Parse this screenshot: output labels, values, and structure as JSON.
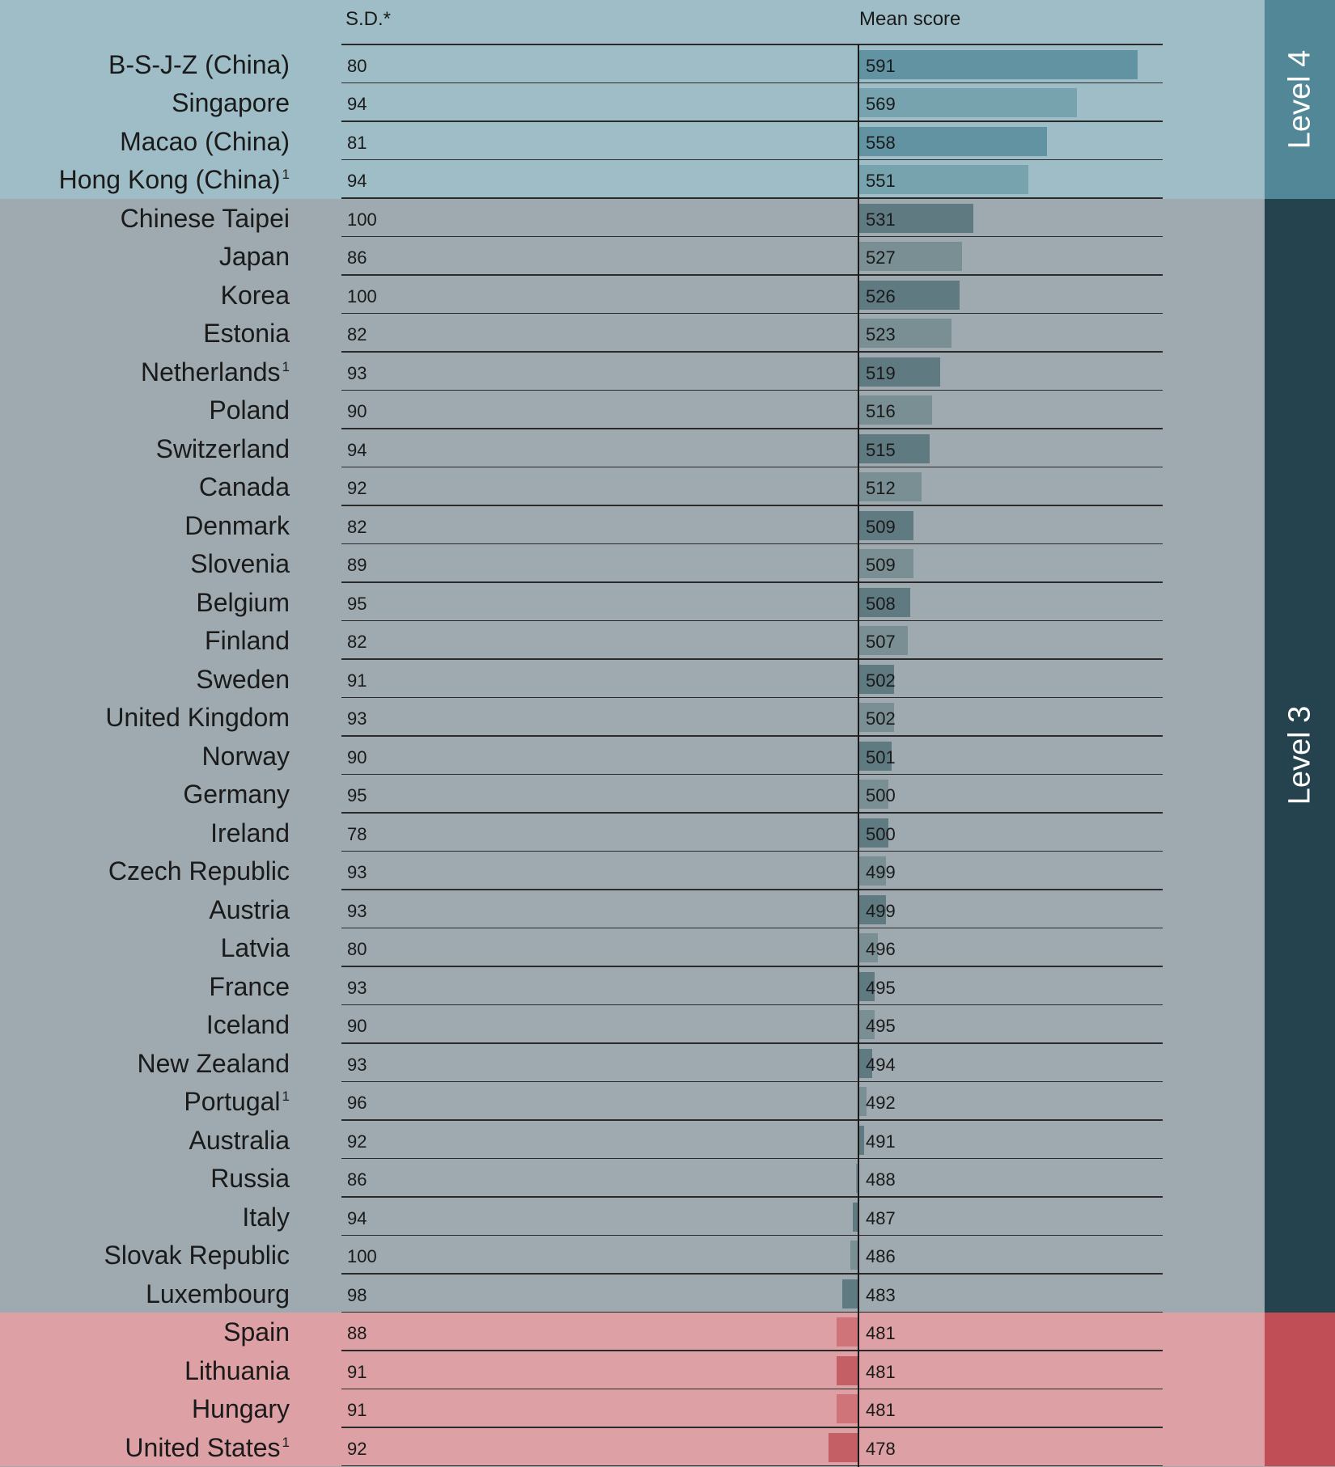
{
  "chart_data": {
    "type": "bar",
    "headers": {
      "sd": "S.D.*",
      "mean": "Mean score"
    },
    "baseline": 489,
    "levels": [
      {
        "label": "Level 4",
        "bg": "#9fbdc6",
        "band": "#528797",
        "bar_dark": "#6193a2",
        "bar_light": "#76a3ae"
      },
      {
        "label": "Level 3",
        "bg": "#9eaaaf",
        "band": "#24434f",
        "bar_dark": "#5f7a80",
        "bar_light": "#7a8f94"
      },
      {
        "label": "",
        "bg": "#dca0a5",
        "band": "#c04e56",
        "bar_dark": "#c55f66",
        "bar_light": "#cf7479"
      }
    ],
    "rows": [
      {
        "country": "B-S-J-Z (China)",
        "sd": 80,
        "mean": 591,
        "level": 0
      },
      {
        "country": "Singapore",
        "sd": 94,
        "mean": 569,
        "level": 0
      },
      {
        "country": "Macao (China)",
        "sd": 81,
        "mean": 558,
        "level": 0
      },
      {
        "country": "Hong Kong (China)",
        "note": "1",
        "sd": 94,
        "mean": 551,
        "level": 0
      },
      {
        "country": "Chinese Taipei",
        "sd": 100,
        "mean": 531,
        "level": 1
      },
      {
        "country": "Japan",
        "sd": 86,
        "mean": 527,
        "level": 1
      },
      {
        "country": "Korea",
        "sd": 100,
        "mean": 526,
        "level": 1
      },
      {
        "country": "Estonia",
        "sd": 82,
        "mean": 523,
        "level": 1
      },
      {
        "country": "Netherlands",
        "note": "1",
        "sd": 93,
        "mean": 519,
        "level": 1
      },
      {
        "country": "Poland",
        "sd": 90,
        "mean": 516,
        "level": 1
      },
      {
        "country": "Switzerland",
        "sd": 94,
        "mean": 515,
        "level": 1
      },
      {
        "country": "Canada",
        "sd": 92,
        "mean": 512,
        "level": 1
      },
      {
        "country": "Denmark",
        "sd": 82,
        "mean": 509,
        "level": 1
      },
      {
        "country": "Slovenia",
        "sd": 89,
        "mean": 509,
        "level": 1
      },
      {
        "country": "Belgium",
        "sd": 95,
        "mean": 508,
        "level": 1
      },
      {
        "country": "Finland",
        "sd": 82,
        "mean": 507,
        "level": 1
      },
      {
        "country": "Sweden",
        "sd": 91,
        "mean": 502,
        "level": 1
      },
      {
        "country": "United Kingdom",
        "sd": 93,
        "mean": 502,
        "level": 1
      },
      {
        "country": "Norway",
        "sd": 90,
        "mean": 501,
        "level": 1
      },
      {
        "country": "Germany",
        "sd": 95,
        "mean": 500,
        "level": 1
      },
      {
        "country": "Ireland",
        "sd": 78,
        "mean": 500,
        "level": 1
      },
      {
        "country": "Czech Republic",
        "sd": 93,
        "mean": 499,
        "level": 1
      },
      {
        "country": "Austria",
        "sd": 93,
        "mean": 499,
        "level": 1
      },
      {
        "country": "Latvia",
        "sd": 80,
        "mean": 496,
        "level": 1
      },
      {
        "country": "France",
        "sd": 93,
        "mean": 495,
        "level": 1
      },
      {
        "country": "Iceland",
        "sd": 90,
        "mean": 495,
        "level": 1
      },
      {
        "country": "New Zealand",
        "sd": 93,
        "mean": 494,
        "level": 1
      },
      {
        "country": "Portugal",
        "note": "1",
        "sd": 96,
        "mean": 492,
        "level": 1
      },
      {
        "country": "Australia",
        "sd": 92,
        "mean": 491,
        "level": 1
      },
      {
        "country": "Russia",
        "sd": 86,
        "mean": 488,
        "level": 1
      },
      {
        "country": "Italy",
        "sd": 94,
        "mean": 487,
        "level": 1
      },
      {
        "country": "Slovak Republic",
        "sd": 100,
        "mean": 486,
        "level": 1
      },
      {
        "country": "Luxembourg",
        "sd": 98,
        "mean": 483,
        "level": 1
      },
      {
        "country": "Spain",
        "sd": 88,
        "mean": 481,
        "level": 2
      },
      {
        "country": "Lithuania",
        "sd": 91,
        "mean": 481,
        "level": 2
      },
      {
        "country": "Hungary",
        "sd": 91,
        "mean": 481,
        "level": 2
      },
      {
        "country": "United States",
        "note": "1",
        "sd": 92,
        "mean": 478,
        "level": 2
      }
    ]
  }
}
